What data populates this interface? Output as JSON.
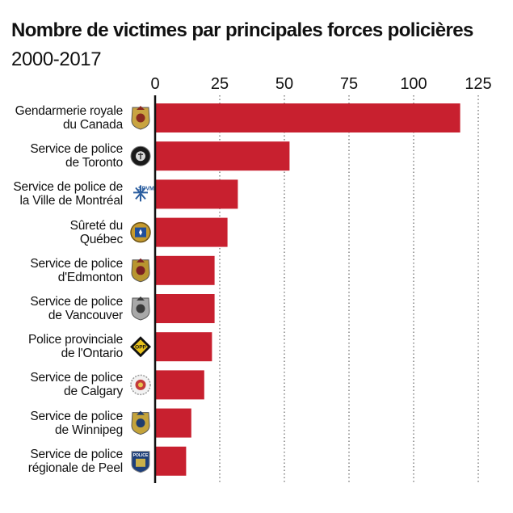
{
  "chart_data": {
    "type": "bar",
    "orientation": "horizontal",
    "title": "Nombre de victimes par principales forces policières",
    "subtitle": "2000-2017",
    "xlim": [
      0,
      125
    ],
    "ticks": [
      "0",
      "25",
      "50",
      "75",
      "100",
      "125"
    ],
    "tick_values": [
      0,
      25,
      50,
      75,
      100,
      125
    ],
    "bar_color": "#c8202f",
    "grid": "dotted vertical",
    "categories": [
      {
        "line1": "Gendarmerie royale",
        "line2": "du Canada",
        "icon": "rcmp-crest-icon"
      },
      {
        "line1": "Service de police",
        "line2": "de Toronto",
        "icon": "toronto-police-badge-icon"
      },
      {
        "line1": "Service de police de",
        "line2": "la Ville de Montréal",
        "icon": "spvm-logo-icon",
        "icon_text": "SPVM"
      },
      {
        "line1": "Sûreté du",
        "line2": "Québec",
        "icon": "sq-badge-icon"
      },
      {
        "line1": "Service de police",
        "line2": "d'Edmonton",
        "icon": "edmonton-police-crest-icon"
      },
      {
        "line1": "Service de police",
        "line2": "de Vancouver",
        "icon": "vancouver-police-badge-icon"
      },
      {
        "line1": "Police provinciale",
        "line2": "de l'Ontario",
        "icon": "opp-badge-icon",
        "icon_text": "OPP"
      },
      {
        "line1": "Service de police",
        "line2": "de Calgary",
        "icon": "calgary-police-badge-icon"
      },
      {
        "line1": "Service de police",
        "line2": "de Winnipeg",
        "icon": "winnipeg-police-badge-icon"
      },
      {
        "line1": "Service de police",
        "line2": "régionale de Peel",
        "icon": "peel-police-badge-icon",
        "icon_text": "POLICE"
      }
    ],
    "values": [
      118,
      52,
      32,
      28,
      23,
      23,
      22,
      19,
      14,
      12
    ]
  }
}
